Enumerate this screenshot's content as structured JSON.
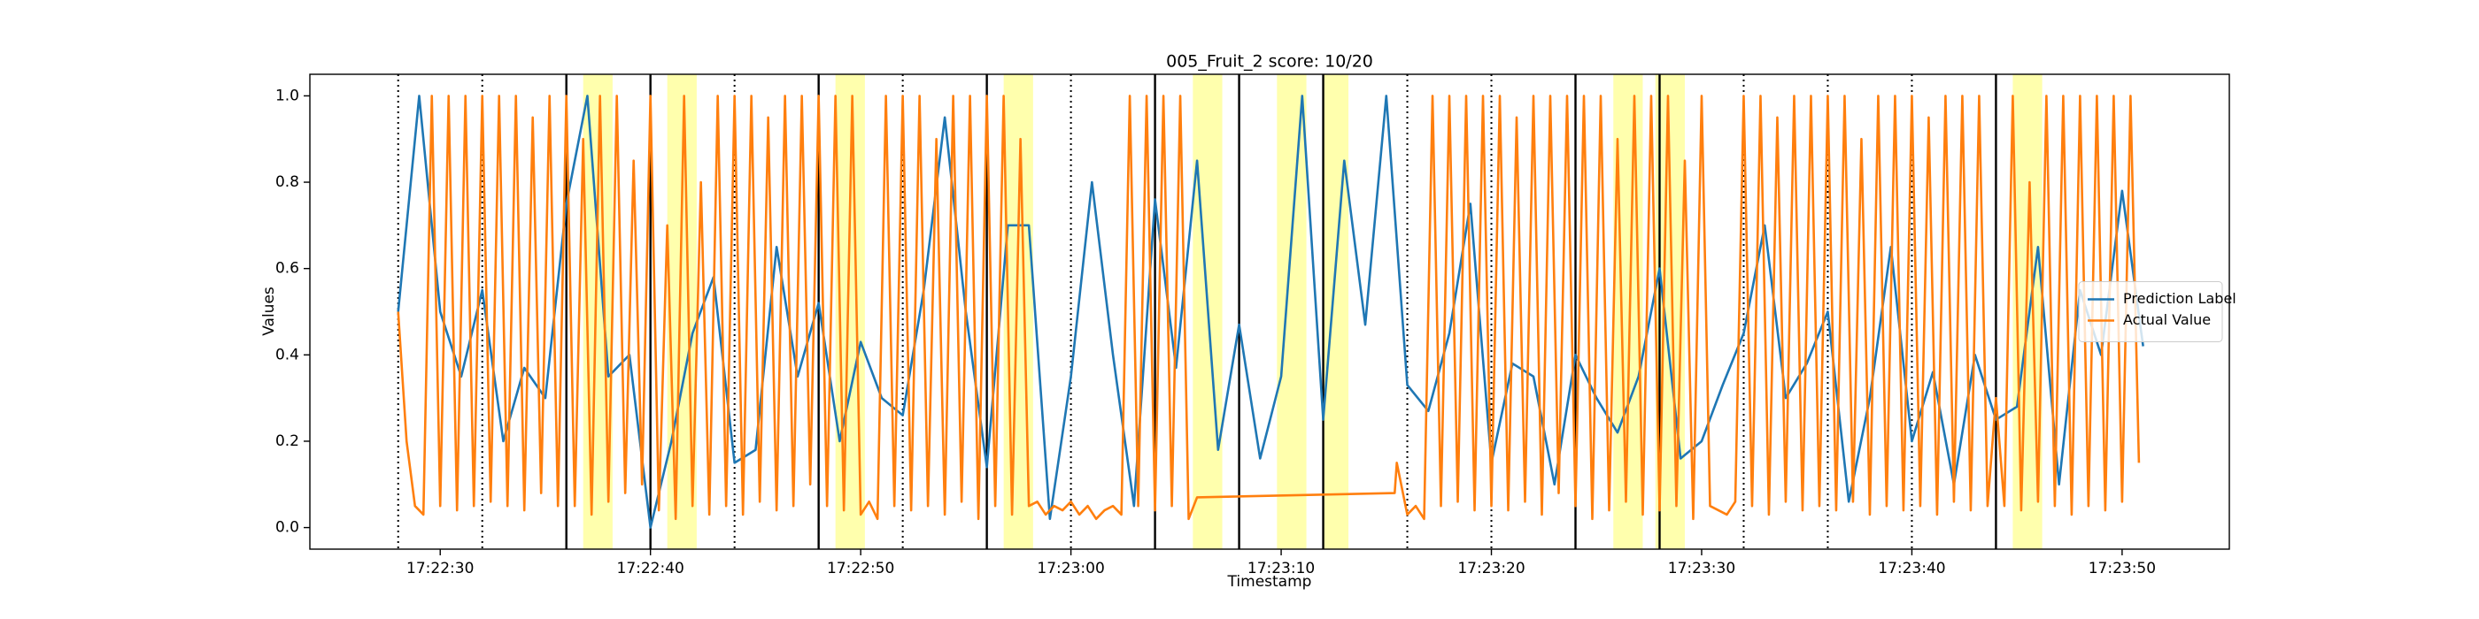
{
  "chart_data": {
    "type": "line",
    "title": "005_Fruit_2 score: 10/20",
    "xlabel": "Timestamp",
    "ylabel": "Values",
    "xlim": [
      23.8,
      115.1
    ],
    "ylim": [
      -0.05,
      1.05
    ],
    "xticks": [
      {
        "value": 30,
        "label": "17:22:30"
      },
      {
        "value": 40,
        "label": "17:22:40"
      },
      {
        "value": 50,
        "label": "17:22:50"
      },
      {
        "value": 60,
        "label": "17:23:00"
      },
      {
        "value": 70,
        "label": "17:23:10"
      },
      {
        "value": 80,
        "label": "17:23:20"
      },
      {
        "value": 90,
        "label": "17:23:30"
      },
      {
        "value": 100,
        "label": "17:23:40"
      },
      {
        "value": 110,
        "label": "17:23:50"
      }
    ],
    "yticks": [
      {
        "value": 0,
        "label": "0.0"
      },
      0.2,
      0.4,
      0.6,
      0.8,
      {
        "value": 1,
        "label": "1.0"
      }
    ],
    "grid": false,
    "legend": "right",
    "highlight_color": "#ffff99",
    "highlight_spans": [
      [
        36.8,
        38.2
      ],
      [
        40.8,
        42.2
      ],
      [
        48.8,
        50.2
      ],
      [
        56.8,
        58.2
      ],
      [
        65.8,
        67.2
      ],
      [
        69.8,
        71.2
      ],
      [
        72,
        73.2
      ],
      [
        85.8,
        87.2
      ],
      [
        87.8,
        89.2
      ],
      [
        104.8,
        106.2
      ]
    ],
    "dotted_lines": [
      28,
      32,
      44,
      52,
      60,
      76,
      80,
      92,
      96,
      100
    ],
    "solid_lines": [
      36,
      40,
      48,
      56,
      64,
      68,
      72,
      84,
      88,
      104
    ],
    "series": [
      {
        "name": "Prediction Label",
        "color": "#1f77b4",
        "x": [
          28,
          29,
          30,
          31,
          32,
          33,
          34,
          35,
          36,
          37,
          38,
          39,
          40,
          41,
          42,
          43,
          44,
          45,
          46,
          47,
          48,
          49,
          50,
          51,
          52,
          53,
          54,
          55,
          56,
          57,
          58,
          59,
          60,
          61,
          62,
          63,
          64,
          65,
          66,
          67,
          68,
          69,
          70,
          71,
          72,
          73,
          74,
          75,
          76,
          77,
          78,
          79,
          80,
          81,
          82,
          83,
          84,
          85,
          86,
          87,
          88,
          89,
          90,
          91,
          92,
          93,
          94,
          95,
          96,
          97,
          98,
          99,
          100,
          101,
          102,
          103,
          104,
          105,
          106,
          107,
          108,
          109,
          110,
          111
        ],
        "values": [
          0.5,
          1.0,
          0.5,
          0.35,
          0.55,
          0.2,
          0.37,
          0.3,
          0.75,
          1.0,
          0.35,
          0.4,
          0.0,
          0.2,
          0.45,
          0.58,
          0.15,
          0.18,
          0.65,
          0.35,
          0.52,
          0.2,
          0.43,
          0.3,
          0.26,
          0.55,
          0.95,
          0.5,
          0.14,
          0.7,
          0.7,
          0.02,
          0.35,
          0.8,
          0.4,
          0.05,
          0.76,
          0.37,
          0.85,
          0.18,
          0.47,
          0.16,
          0.35,
          1.0,
          0.25,
          0.85,
          0.47,
          1.0,
          0.33,
          0.27,
          0.45,
          0.75,
          0.15,
          0.38,
          0.35,
          0.1,
          0.4,
          0.3,
          0.22,
          0.35,
          0.6,
          0.16,
          0.2,
          0.33,
          0.45,
          0.7,
          0.3,
          0.38,
          0.5,
          0.06,
          0.3,
          0.65,
          0.2,
          0.36,
          0.1,
          0.4,
          0.25,
          0.28,
          0.65,
          0.1,
          0.55,
          0.4,
          0.78,
          0.42
        ]
      },
      {
        "name": "Actual Value",
        "color": "#ff7f0e",
        "x": [
          28,
          28.4,
          28.8,
          29.2,
          29.6,
          30,
          30.4,
          30.8,
          31.2,
          31.6,
          32,
          32.4,
          32.8,
          33.2,
          33.6,
          34,
          34.4,
          34.8,
          35.2,
          35.6,
          36,
          36.4,
          36.8,
          37.2,
          37.6,
          38,
          38.4,
          38.8,
          39.2,
          39.6,
          40,
          40.4,
          40.8,
          41.2,
          41.6,
          42,
          42.4,
          42.8,
          43.2,
          43.6,
          44,
          44.4,
          44.8,
          45.2,
          45.6,
          46,
          46.4,
          46.8,
          47.2,
          47.6,
          48,
          48.4,
          48.8,
          49.2,
          49.6,
          50,
          50.4,
          50.8,
          51.2,
          51.6,
          52,
          52.4,
          52.8,
          53.2,
          53.6,
          54,
          54.4,
          54.8,
          55.2,
          55.6,
          56,
          56.4,
          56.8,
          57.2,
          57.6,
          58,
          58.4,
          58.8,
          59.2,
          59.6,
          60,
          60.4,
          60.8,
          61.2,
          61.6,
          62,
          62.4,
          62.8,
          63.2,
          63.6,
          64,
          64.4,
          64.8,
          65.2,
          65.6,
          66,
          75.4,
          75.5,
          76,
          76.4,
          76.8,
          77.2,
          77.6,
          78,
          78.4,
          78.8,
          79.2,
          79.6,
          80,
          80.4,
          80.8,
          81.2,
          81.6,
          82,
          82.4,
          82.8,
          83.2,
          83.6,
          84,
          84.4,
          84.8,
          85.2,
          85.6,
          86,
          86.4,
          86.8,
          87.2,
          87.6,
          88,
          88.4,
          88.8,
          89.2,
          89.6,
          90,
          90.4,
          90.8,
          91.2,
          91.6,
          92,
          92.4,
          92.8,
          93.2,
          93.6,
          94,
          94.4,
          94.8,
          95.2,
          95.6,
          96,
          96.4,
          96.8,
          97.2,
          97.6,
          98,
          98.4,
          98.8,
          99.2,
          99.6,
          100,
          100.4,
          100.8,
          101.2,
          101.6,
          102,
          102.4,
          102.8,
          103.2,
          103.6,
          104,
          104.4,
          104.8,
          105.2,
          105.6,
          106,
          106.4,
          106.8,
          107.2,
          107.6,
          108,
          108.4,
          108.8,
          109.2,
          109.6,
          110,
          110.4,
          110.8
        ],
        "values": [
          0.5,
          0.2,
          0.05,
          0.03,
          1.0,
          0.05,
          1.0,
          0.04,
          1.0,
          0.05,
          1.0,
          0.06,
          1.0,
          0.05,
          1.0,
          0.04,
          0.95,
          0.08,
          1.0,
          0.05,
          1.0,
          0.05,
          0.9,
          0.03,
          1.0,
          0.06,
          1.0,
          0.08,
          0.85,
          0.1,
          1.0,
          0.04,
          0.7,
          0.02,
          1.0,
          0.05,
          0.8,
          0.03,
          1.0,
          0.05,
          1.0,
          0.03,
          1.0,
          0.06,
          0.95,
          0.04,
          1.0,
          0.05,
          1.0,
          0.1,
          1.0,
          0.05,
          1.0,
          0.04,
          1.0,
          0.03,
          0.06,
          0.02,
          1.0,
          0.05,
          1.0,
          0.04,
          1.0,
          0.05,
          0.9,
          0.03,
          1.0,
          0.06,
          1.0,
          0.02,
          1.0,
          0.05,
          1.0,
          0.03,
          0.9,
          0.05,
          0.06,
          0.03,
          0.05,
          0.04,
          0.06,
          0.03,
          0.05,
          0.02,
          0.04,
          0.05,
          0.03,
          1.0,
          0.05,
          1.0,
          0.04,
          1.0,
          0.05,
          1.0,
          0.02,
          0.07,
          0.08,
          0.15,
          0.03,
          0.05,
          0.02,
          1.0,
          0.05,
          1.0,
          0.06,
          1.0,
          0.04,
          1.0,
          0.05,
          1.0,
          0.04,
          0.95,
          0.06,
          1.0,
          0.03,
          1.0,
          0.08,
          1.0,
          0.05,
          1.0,
          0.02,
          1.0,
          0.04,
          0.9,
          0.06,
          1.0,
          0.03,
          1.0,
          0.04,
          1.0,
          0.05,
          0.85,
          0.02,
          1.0,
          0.05,
          0.04,
          0.03,
          0.06,
          1.0,
          0.05,
          1.0,
          0.03,
          0.95,
          0.06,
          1.0,
          0.04,
          1.0,
          0.05,
          1.0,
          0.04,
          1.0,
          0.06,
          0.9,
          0.03,
          1.0,
          0.05,
          1.0,
          0.04,
          1.0,
          0.05,
          0.95,
          0.03,
          1.0,
          0.06,
          1.0,
          0.04,
          1.0,
          0.05,
          0.3,
          0.05,
          1.0,
          0.04,
          0.8,
          0.06,
          1.0,
          0.05,
          1.0,
          0.03,
          1.0,
          0.05,
          1.0,
          0.04,
          1.0,
          0.06,
          1.0,
          0.15
        ]
      }
    ]
  }
}
